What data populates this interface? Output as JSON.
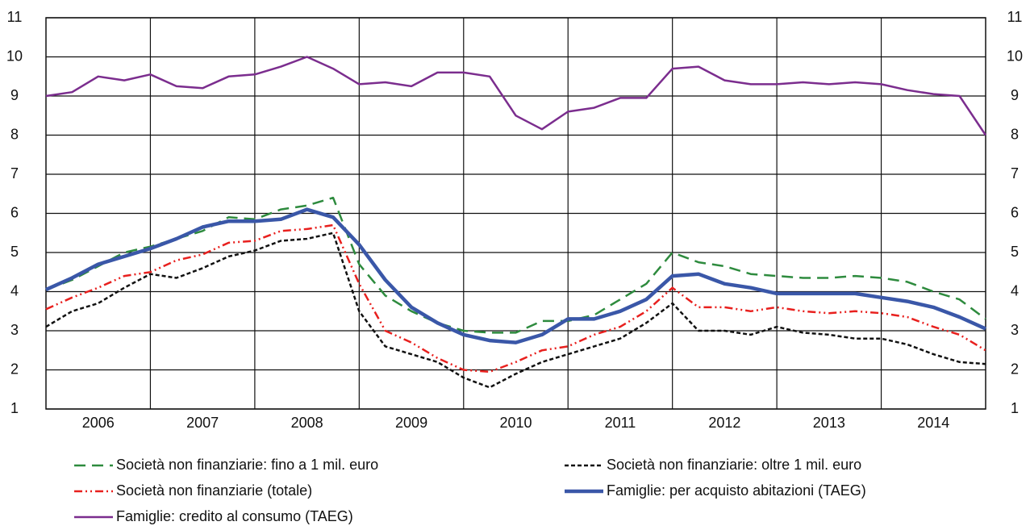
{
  "chart_data": {
    "type": "line",
    "x": [
      2006,
      2006.25,
      2006.5,
      2006.75,
      2007,
      2007.25,
      2007.5,
      2007.75,
      2008,
      2008.25,
      2008.5,
      2008.75,
      2009,
      2009.25,
      2009.5,
      2009.75,
      2010,
      2010.25,
      2010.5,
      2010.75,
      2011,
      2011.25,
      2011.5,
      2011.75,
      2012,
      2012.25,
      2012.5,
      2012.75,
      2013,
      2013.25,
      2013.5,
      2013.75,
      2014,
      2014.25,
      2014.5,
      2014.75,
      2015
    ],
    "xlim": [
      2006,
      2015
    ],
    "xticks": [
      {
        "value": 2006.5,
        "label": "2006"
      },
      {
        "value": 2007.5,
        "label": "2007"
      },
      {
        "value": 2008.5,
        "label": "2008"
      },
      {
        "value": 2009.5,
        "label": "2009"
      },
      {
        "value": 2010.5,
        "label": "2010"
      },
      {
        "value": 2011.5,
        "label": "2011"
      },
      {
        "value": 2012.5,
        "label": "2012"
      },
      {
        "value": 2013.5,
        "label": "2013"
      },
      {
        "value": 2014.5,
        "label": "2014"
      }
    ],
    "xgrid": [
      2007,
      2008,
      2009,
      2010,
      2011,
      2012,
      2013,
      2014
    ],
    "ylim": [
      1,
      11
    ],
    "yticks": [
      1,
      2,
      3,
      4,
      5,
      6,
      7,
      8,
      9,
      10,
      11
    ],
    "y2lim": [
      1,
      11
    ],
    "y2ticks": [
      1,
      2,
      3,
      4,
      5,
      6,
      7,
      8,
      9,
      10,
      11
    ],
    "grid": true,
    "series": [
      {
        "name": "Società non finanziarie: fino a 1 mil. euro",
        "color": "#2e8b3e",
        "dash": "14,8",
        "width": 2.5,
        "values": [
          4.05,
          4.3,
          4.65,
          5.0,
          5.15,
          5.35,
          5.55,
          5.9,
          5.85,
          6.1,
          6.2,
          6.4,
          4.7,
          3.9,
          3.5,
          3.2,
          3.0,
          2.95,
          2.95,
          3.25,
          3.25,
          3.4,
          3.8,
          4.2,
          5.0,
          4.75,
          4.65,
          4.45,
          4.4,
          4.35,
          4.35,
          4.4,
          4.35,
          4.25,
          4.0,
          3.8,
          3.3
        ]
      },
      {
        "name": "Società non finanziarie: oltre 1 mil. euro",
        "color": "#111111",
        "dash": "5,3",
        "width": 2.5,
        "values": [
          3.1,
          3.5,
          3.7,
          4.1,
          4.45,
          4.35,
          4.6,
          4.9,
          5.05,
          5.3,
          5.35,
          5.5,
          3.5,
          2.6,
          2.4,
          2.2,
          1.8,
          1.55,
          1.9,
          2.2,
          2.4,
          2.6,
          2.8,
          3.2,
          3.7,
          3.0,
          3.0,
          2.9,
          3.1,
          2.95,
          2.9,
          2.8,
          2.8,
          2.65,
          2.4,
          2.2,
          2.15
        ]
      },
      {
        "name": "Società non finanziarie (totale)",
        "color": "#e8201e",
        "dash": "10,4,2,4,2,4",
        "width": 2.5,
        "values": [
          3.55,
          3.85,
          4.1,
          4.4,
          4.5,
          4.8,
          4.95,
          5.25,
          5.3,
          5.55,
          5.6,
          5.7,
          4.2,
          3.0,
          2.7,
          2.3,
          2.0,
          1.95,
          2.2,
          2.5,
          2.6,
          2.9,
          3.1,
          3.5,
          4.1,
          3.6,
          3.6,
          3.5,
          3.6,
          3.5,
          3.45,
          3.5,
          3.45,
          3.35,
          3.1,
          2.9,
          2.5
        ]
      },
      {
        "name": "Famiglie: per acquisto abitazioni (TAEG)",
        "color": "#3a57a8",
        "dash": "none",
        "width": 4.5,
        "values": [
          4.05,
          4.35,
          4.7,
          4.9,
          5.1,
          5.35,
          5.65,
          5.8,
          5.8,
          5.85,
          6.1,
          5.9,
          5.2,
          4.3,
          3.6,
          3.2,
          2.9,
          2.75,
          2.7,
          2.9,
          3.3,
          3.3,
          3.5,
          3.8,
          4.4,
          4.45,
          4.2,
          4.1,
          3.95,
          3.95,
          3.95,
          3.95,
          3.85,
          3.75,
          3.6,
          3.35,
          3.05
        ]
      },
      {
        "name": "Famiglie: credito al consumo (TAEG)",
        "color": "#7b2d8e",
        "dash": "none",
        "width": 2.5,
        "values": [
          9.0,
          9.1,
          9.5,
          9.4,
          9.55,
          9.25,
          9.2,
          9.5,
          9.55,
          9.75,
          10.0,
          9.7,
          9.3,
          9.35,
          9.25,
          9.6,
          9.6,
          9.5,
          8.5,
          8.15,
          8.6,
          8.7,
          8.95,
          8.95,
          9.7,
          9.75,
          9.4,
          9.3,
          9.3,
          9.35,
          9.3,
          9.35,
          9.3,
          9.15,
          9.05,
          9.0,
          8.0
        ]
      }
    ]
  }
}
